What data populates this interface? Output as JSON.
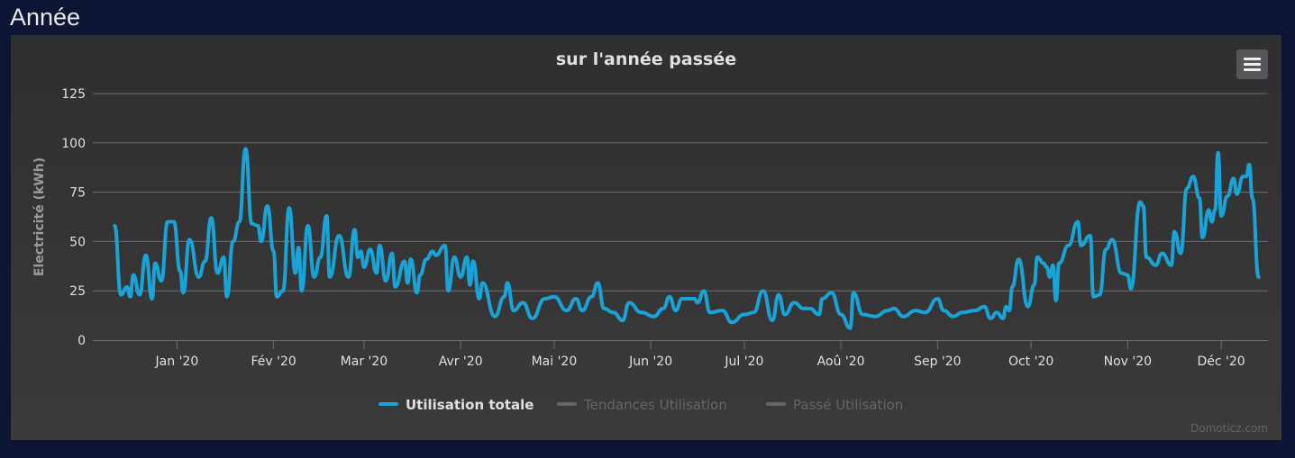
{
  "page": {
    "section_title": "Année"
  },
  "chart_data": {
    "type": "line",
    "title": "sur l'année passée",
    "ylabel": "Electricité (kWh)",
    "ylim": [
      0,
      125
    ],
    "yticks": [
      "0",
      "25",
      "50",
      "75",
      "100",
      "125"
    ],
    "xlim": [
      "2019-12-05",
      "2020-12-16"
    ],
    "xticks": [
      {
        "date": "2020-01-01",
        "label": "Jan '20"
      },
      {
        "date": "2020-02-01",
        "label": "Fév '20"
      },
      {
        "date": "2020-03-01",
        "label": "Mar '20"
      },
      {
        "date": "2020-04-01",
        "label": "Avr '20"
      },
      {
        "date": "2020-05-01",
        "label": "Mai '20"
      },
      {
        "date": "2020-06-01",
        "label": "Jun '20"
      },
      {
        "date": "2020-07-01",
        "label": "Jul '20"
      },
      {
        "date": "2020-08-01",
        "label": "Aoû '20"
      },
      {
        "date": "2020-09-01",
        "label": "Sep '20"
      },
      {
        "date": "2020-10-01",
        "label": "Oct '20"
      },
      {
        "date": "2020-11-01",
        "label": "Nov '20"
      },
      {
        "date": "2020-12-01",
        "label": "Déc '20"
      }
    ],
    "grid": true,
    "legend_position": "bottom",
    "series": [
      {
        "name": "Utilisation totale",
        "color": "#1aa3d6",
        "visible": true,
        "data": [
          [
            "2019-12-12",
            58
          ],
          [
            "2019-12-14",
            23
          ],
          [
            "2019-12-16",
            27
          ],
          [
            "2019-12-17",
            22
          ],
          [
            "2019-12-18",
            33
          ],
          [
            "2019-12-20",
            23
          ],
          [
            "2019-12-22",
            43
          ],
          [
            "2019-12-24",
            21
          ],
          [
            "2019-12-25",
            39
          ],
          [
            "2019-12-27",
            30
          ],
          [
            "2019-12-29",
            60
          ],
          [
            "2019-12-31",
            60
          ],
          [
            "2020-01-02",
            35
          ],
          [
            "2020-01-03",
            24
          ],
          [
            "2020-01-05",
            51
          ],
          [
            "2020-01-08",
            32
          ],
          [
            "2020-01-10",
            40
          ],
          [
            "2020-01-12",
            62
          ],
          [
            "2020-01-14",
            34
          ],
          [
            "2020-01-16",
            42
          ],
          [
            "2020-01-17",
            22
          ],
          [
            "2020-01-19",
            50
          ],
          [
            "2020-01-21",
            60
          ],
          [
            "2020-01-23",
            97
          ],
          [
            "2020-01-25",
            59
          ],
          [
            "2020-01-27",
            58
          ],
          [
            "2020-01-28",
            50
          ],
          [
            "2020-01-30",
            68
          ],
          [
            "2020-02-01",
            45
          ],
          [
            "2020-02-02",
            22
          ],
          [
            "2020-02-04",
            25
          ],
          [
            "2020-02-06",
            67
          ],
          [
            "2020-02-08",
            34
          ],
          [
            "2020-02-09",
            47
          ],
          [
            "2020-02-10",
            25
          ],
          [
            "2020-02-12",
            58
          ],
          [
            "2020-02-14",
            32
          ],
          [
            "2020-02-16",
            42
          ],
          [
            "2020-02-18",
            63
          ],
          [
            "2020-02-19",
            32
          ],
          [
            "2020-02-22",
            53
          ],
          [
            "2020-02-25",
            32
          ],
          [
            "2020-02-27",
            56
          ],
          [
            "2020-02-28",
            42
          ],
          [
            "2020-02-29",
            45
          ],
          [
            "2020-03-01",
            37
          ],
          [
            "2020-03-03",
            46
          ],
          [
            "2020-03-05",
            34
          ],
          [
            "2020-03-06",
            48
          ],
          [
            "2020-03-08",
            30
          ],
          [
            "2020-03-10",
            44
          ],
          [
            "2020-03-11",
            27
          ],
          [
            "2020-03-14",
            40
          ],
          [
            "2020-03-15",
            29
          ],
          [
            "2020-03-16",
            41
          ],
          [
            "2020-03-18",
            24
          ],
          [
            "2020-03-19",
            33
          ],
          [
            "2020-03-21",
            41
          ],
          [
            "2020-03-23",
            45
          ],
          [
            "2020-03-24",
            43
          ],
          [
            "2020-03-27",
            48
          ],
          [
            "2020-03-28",
            25
          ],
          [
            "2020-03-30",
            42
          ],
          [
            "2020-04-01",
            32
          ],
          [
            "2020-04-03",
            42
          ],
          [
            "2020-04-04",
            28
          ],
          [
            "2020-04-05",
            40
          ],
          [
            "2020-04-07",
            21
          ],
          [
            "2020-04-08",
            29
          ],
          [
            "2020-04-12",
            12
          ],
          [
            "2020-04-15",
            22
          ],
          [
            "2020-04-16",
            29
          ],
          [
            "2020-04-18",
            15
          ],
          [
            "2020-04-21",
            19
          ],
          [
            "2020-04-24",
            11
          ],
          [
            "2020-04-28",
            21
          ],
          [
            "2020-05-01",
            22
          ],
          [
            "2020-05-05",
            15
          ],
          [
            "2020-05-08",
            21
          ],
          [
            "2020-05-10",
            15
          ],
          [
            "2020-05-13",
            22
          ],
          [
            "2020-05-15",
            29
          ],
          [
            "2020-05-17",
            16
          ],
          [
            "2020-05-20",
            14
          ],
          [
            "2020-05-23",
            10
          ],
          [
            "2020-05-25",
            19
          ],
          [
            "2020-05-29",
            14
          ],
          [
            "2020-06-02",
            12
          ],
          [
            "2020-06-05",
            16
          ],
          [
            "2020-06-07",
            22
          ],
          [
            "2020-06-09",
            15
          ],
          [
            "2020-06-11",
            21
          ],
          [
            "2020-06-15",
            21
          ],
          [
            "2020-06-16",
            19
          ],
          [
            "2020-06-18",
            25
          ],
          [
            "2020-06-20",
            14
          ],
          [
            "2020-06-24",
            15
          ],
          [
            "2020-06-27",
            9
          ],
          [
            "2020-07-01",
            13
          ],
          [
            "2020-07-04",
            14
          ],
          [
            "2020-07-07",
            25
          ],
          [
            "2020-07-10",
            10
          ],
          [
            "2020-07-12",
            23
          ],
          [
            "2020-07-14",
            13
          ],
          [
            "2020-07-17",
            19
          ],
          [
            "2020-07-20",
            16
          ],
          [
            "2020-07-22",
            16
          ],
          [
            "2020-07-25",
            13
          ],
          [
            "2020-07-26",
            21
          ],
          [
            "2020-07-29",
            24
          ],
          [
            "2020-08-01",
            13
          ],
          [
            "2020-08-04",
            6
          ],
          [
            "2020-08-05",
            24
          ],
          [
            "2020-08-08",
            13
          ],
          [
            "2020-08-12",
            12
          ],
          [
            "2020-08-16",
            15
          ],
          [
            "2020-08-18",
            16
          ],
          [
            "2020-08-21",
            12
          ],
          [
            "2020-08-25",
            15
          ],
          [
            "2020-08-28",
            14
          ],
          [
            "2020-09-01",
            21
          ],
          [
            "2020-09-03",
            15
          ],
          [
            "2020-09-06",
            12
          ],
          [
            "2020-09-09",
            14
          ],
          [
            "2020-09-13",
            15
          ],
          [
            "2020-09-16",
            17
          ],
          [
            "2020-09-18",
            11
          ],
          [
            "2020-09-20",
            14
          ],
          [
            "2020-09-22",
            11
          ],
          [
            "2020-09-23",
            17
          ],
          [
            "2020-09-24",
            15
          ],
          [
            "2020-09-25",
            27
          ],
          [
            "2020-09-27",
            41
          ],
          [
            "2020-09-30",
            17
          ],
          [
            "2020-10-02",
            28
          ],
          [
            "2020-10-03",
            42
          ],
          [
            "2020-10-05",
            39
          ],
          [
            "2020-10-06",
            37
          ],
          [
            "2020-10-07",
            32
          ],
          [
            "2020-10-08",
            38
          ],
          [
            "2020-10-09",
            20
          ],
          [
            "2020-10-10",
            39
          ],
          [
            "2020-10-13",
            48
          ],
          [
            "2020-10-16",
            60
          ],
          [
            "2020-10-17",
            48
          ],
          [
            "2020-10-20",
            53
          ],
          [
            "2020-10-21",
            22
          ],
          [
            "2020-10-23",
            23
          ],
          [
            "2020-10-25",
            46
          ],
          [
            "2020-10-27",
            51
          ],
          [
            "2020-10-30",
            34
          ],
          [
            "2020-11-01",
            33
          ],
          [
            "2020-11-02",
            26
          ],
          [
            "2020-11-05",
            70
          ],
          [
            "2020-11-06",
            68
          ],
          [
            "2020-11-07",
            42
          ],
          [
            "2020-11-10",
            38
          ],
          [
            "2020-11-12",
            44
          ],
          [
            "2020-11-15",
            38
          ],
          [
            "2020-11-16",
            55
          ],
          [
            "2020-11-18",
            44
          ],
          [
            "2020-11-20",
            77
          ],
          [
            "2020-11-22",
            83
          ],
          [
            "2020-11-24",
            72
          ],
          [
            "2020-11-25",
            52
          ],
          [
            "2020-11-27",
            66
          ],
          [
            "2020-11-28",
            60
          ],
          [
            "2020-11-29",
            66
          ],
          [
            "2020-11-30",
            95
          ],
          [
            "2020-12-01",
            63
          ],
          [
            "2020-12-03",
            73
          ],
          [
            "2020-12-05",
            82
          ],
          [
            "2020-12-06",
            74
          ],
          [
            "2020-12-08",
            83
          ],
          [
            "2020-12-09",
            83
          ],
          [
            "2020-12-10",
            89
          ],
          [
            "2020-12-11",
            72
          ],
          [
            "2020-12-13",
            32
          ]
        ]
      },
      {
        "name": "Tendances Utilisation",
        "color": "#666666",
        "visible": false,
        "data": []
      },
      {
        "name": "Passé Utilisation",
        "color": "#666666",
        "visible": false,
        "data": []
      }
    ],
    "credits": "Domoticz.com"
  },
  "menu": {
    "icon": "hamburger-menu-icon"
  }
}
